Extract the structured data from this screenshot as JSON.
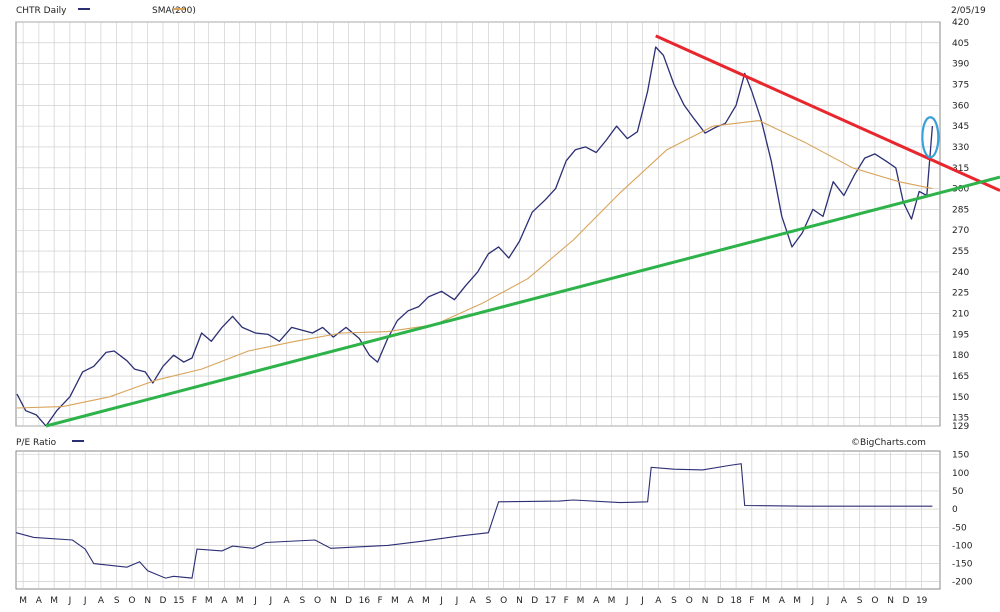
{
  "header": {
    "price_legend_label": "CHTR Daily",
    "sma_legend_label": "SMA(200)",
    "date_label": "2/05/19",
    "pe_legend_label": "P/E Ratio",
    "credit": "©BigCharts.com"
  },
  "colors": {
    "price": "#2b2f74",
    "sma": "#d9a35a",
    "resistance": "#e8262d",
    "support": "#2db34a",
    "highlight": "#3aa0d8",
    "grid": "#c8c8c8",
    "pe": "#2b2f74"
  },
  "chart_data": [
    {
      "type": "line",
      "name": "price-panel",
      "x_range": [
        "2014-03-01",
        "2019-02-20"
      ],
      "ylim": [
        129,
        420
      ],
      "y_ticks": [
        129,
        135,
        150,
        165,
        180,
        195,
        210,
        225,
        240,
        255,
        270,
        285,
        300,
        315,
        330,
        345,
        360,
        375,
        390,
        405,
        420
      ],
      "grid": true,
      "series": [
        {
          "name": "CHTR Daily",
          "points": [
            [
              "2014-03-03",
              152
            ],
            [
              "2014-03-20",
              140
            ],
            [
              "2014-04-10",
              137
            ],
            [
              "2014-04-29",
              129
            ],
            [
              "2014-05-20",
              140
            ],
            [
              "2014-06-15",
              150
            ],
            [
              "2014-07-10",
              168
            ],
            [
              "2014-08-01",
              172
            ],
            [
              "2014-08-25",
              182
            ],
            [
              "2014-09-10",
              183
            ],
            [
              "2014-10-05",
              176
            ],
            [
              "2014-10-20",
              170
            ],
            [
              "2014-11-10",
              168
            ],
            [
              "2014-11-25",
              160
            ],
            [
              "2014-12-15",
              172
            ],
            [
              "2015-01-05",
              180
            ],
            [
              "2015-01-25",
              175
            ],
            [
              "2015-02-10",
              178
            ],
            [
              "2015-03-01",
              196
            ],
            [
              "2015-03-20",
              190
            ],
            [
              "2015-04-10",
              200
            ],
            [
              "2015-05-01",
              208
            ],
            [
              "2015-05-20",
              200
            ],
            [
              "2015-06-15",
              196
            ],
            [
              "2015-07-10",
              195
            ],
            [
              "2015-08-01",
              190
            ],
            [
              "2015-08-25",
              200
            ],
            [
              "2015-09-15",
              198
            ],
            [
              "2015-10-05",
              196
            ],
            [
              "2015-10-25",
              200
            ],
            [
              "2015-11-15",
              193
            ],
            [
              "2015-12-10",
              200
            ],
            [
              "2016-01-05",
              192
            ],
            [
              "2016-01-25",
              180
            ],
            [
              "2016-02-10",
              175
            ],
            [
              "2016-03-01",
              192
            ],
            [
              "2016-03-20",
              205
            ],
            [
              "2016-04-10",
              212
            ],
            [
              "2016-05-01",
              215
            ],
            [
              "2016-05-20",
              222
            ],
            [
              "2016-06-15",
              226
            ],
            [
              "2016-07-10",
              220
            ],
            [
              "2016-08-01",
              230
            ],
            [
              "2016-08-25",
              240
            ],
            [
              "2016-09-15",
              253
            ],
            [
              "2016-10-05",
              258
            ],
            [
              "2016-10-25",
              250
            ],
            [
              "2016-11-15",
              262
            ],
            [
              "2016-12-10",
              283
            ],
            [
              "2017-01-05",
              292
            ],
            [
              "2017-01-25",
              300
            ],
            [
              "2017-02-15",
              320
            ],
            [
              "2017-03-05",
              328
            ],
            [
              "2017-03-25",
              330
            ],
            [
              "2017-04-15",
              326
            ],
            [
              "2017-05-05",
              335
            ],
            [
              "2017-05-25",
              345
            ],
            [
              "2017-06-15",
              336
            ],
            [
              "2017-07-05",
              341
            ],
            [
              "2017-07-25",
              370
            ],
            [
              "2017-08-10",
              402
            ],
            [
              "2017-08-25",
              396
            ],
            [
              "2017-09-15",
              375
            ],
            [
              "2017-10-05",
              360
            ],
            [
              "2017-10-25",
              350
            ],
            [
              "2017-11-15",
              340
            ],
            [
              "2017-12-05",
              344
            ],
            [
              "2017-12-25",
              347
            ],
            [
              "2018-01-15",
              360
            ],
            [
              "2018-02-01",
              383
            ],
            [
              "2018-02-15",
              370
            ],
            [
              "2018-03-05",
              350
            ],
            [
              "2018-03-25",
              320
            ],
            [
              "2018-04-15",
              280
            ],
            [
              "2018-05-05",
              258
            ],
            [
              "2018-05-25",
              268
            ],
            [
              "2018-06-15",
              285
            ],
            [
              "2018-07-05",
              280
            ],
            [
              "2018-07-25",
              305
            ],
            [
              "2018-08-15",
              295
            ],
            [
              "2018-09-05",
              310
            ],
            [
              "2018-09-25",
              322
            ],
            [
              "2018-10-15",
              325
            ],
            [
              "2018-11-05",
              320
            ],
            [
              "2018-11-25",
              315
            ],
            [
              "2018-12-10",
              290
            ],
            [
              "2018-12-26",
              278
            ],
            [
              "2019-01-10",
              298
            ],
            [
              "2019-01-25",
              295
            ],
            [
              "2019-02-05",
              345
            ]
          ]
        },
        {
          "name": "SMA(200)",
          "points": [
            [
              "2014-03-03",
              142
            ],
            [
              "2014-06-01",
              143
            ],
            [
              "2014-09-01",
              150
            ],
            [
              "2014-12-01",
              162
            ],
            [
              "2015-03-01",
              170
            ],
            [
              "2015-06-01",
              183
            ],
            [
              "2015-09-01",
              190
            ],
            [
              "2015-12-01",
              196
            ],
            [
              "2016-03-01",
              197
            ],
            [
              "2016-06-01",
              202
            ],
            [
              "2016-09-01",
              217
            ],
            [
              "2016-12-01",
              235
            ],
            [
              "2017-03-01",
              263
            ],
            [
              "2017-06-01",
              297
            ],
            [
              "2017-09-01",
              328
            ],
            [
              "2017-12-01",
              345
            ],
            [
              "2018-03-01",
              349
            ],
            [
              "2018-06-01",
              333
            ],
            [
              "2018-09-01",
              315
            ],
            [
              "2018-12-01",
              305
            ],
            [
              "2019-02-05",
              300
            ]
          ]
        }
      ],
      "trendlines": [
        {
          "name": "resistance",
          "from": [
            "2017-08-10",
            410
          ],
          "to": [
            "2019-02-20",
            318
          ]
        },
        {
          "name": "support",
          "from": [
            "2014-04-29",
            129
          ],
          "to": [
            "2019-02-20",
            297
          ]
        }
      ],
      "annotation": {
        "type": "ellipse",
        "at": [
          "2019-02-01",
          337
        ]
      }
    },
    {
      "type": "line",
      "name": "pe-panel",
      "x_range": [
        "2014-03-01",
        "2019-02-20"
      ],
      "ylim": [
        -220,
        160
      ],
      "y_ticks": [
        -200,
        -150,
        -100,
        -50,
        0,
        50,
        100,
        150
      ],
      "grid": true,
      "series": [
        {
          "name": "P/E Ratio",
          "points": [
            [
              "2014-03-01",
              -65
            ],
            [
              "2014-04-05",
              -78
            ],
            [
              "2014-06-20",
              -85
            ],
            [
              "2014-07-15",
              -110
            ],
            [
              "2014-08-01",
              -150
            ],
            [
              "2014-10-05",
              -160
            ],
            [
              "2014-10-30",
              -145
            ],
            [
              "2014-11-15",
              -170
            ],
            [
              "2014-12-20",
              -190
            ],
            [
              "2015-01-05",
              -185
            ],
            [
              "2015-02-10",
              -190
            ],
            [
              "2015-02-20",
              -110
            ],
            [
              "2015-04-10",
              -115
            ],
            [
              "2015-05-01",
              -102
            ],
            [
              "2015-06-10",
              -108
            ],
            [
              "2015-07-05",
              -92
            ],
            [
              "2015-10-10",
              -85
            ],
            [
              "2015-11-10",
              -108
            ],
            [
              "2016-03-01",
              -100
            ],
            [
              "2016-05-10",
              -88
            ],
            [
              "2016-07-15",
              -75
            ],
            [
              "2016-09-15",
              -65
            ],
            [
              "2016-10-05",
              20
            ],
            [
              "2017-02-01",
              22
            ],
            [
              "2017-03-01",
              25
            ],
            [
              "2017-06-01",
              18
            ],
            [
              "2017-07-25",
              20
            ],
            [
              "2017-08-01",
              115
            ],
            [
              "2017-09-15",
              110
            ],
            [
              "2017-11-10",
              108
            ],
            [
              "2018-01-01",
              120
            ],
            [
              "2018-01-25",
              125
            ],
            [
              "2018-02-01",
              10
            ],
            [
              "2018-06-01",
              8
            ],
            [
              "2019-02-05",
              8
            ]
          ]
        }
      ]
    }
  ],
  "x_axis": {
    "ticks": [
      {
        "date": "2014-03-15",
        "label": "M"
      },
      {
        "date": "2014-04-15",
        "label": "A"
      },
      {
        "date": "2014-05-15",
        "label": "M"
      },
      {
        "date": "2014-06-15",
        "label": "J"
      },
      {
        "date": "2014-07-15",
        "label": "J"
      },
      {
        "date": "2014-08-15",
        "label": "A"
      },
      {
        "date": "2014-09-15",
        "label": "S"
      },
      {
        "date": "2014-10-15",
        "label": "O"
      },
      {
        "date": "2014-11-15",
        "label": "N"
      },
      {
        "date": "2014-12-15",
        "label": "D"
      },
      {
        "date": "2015-01-15",
        "label": "15"
      },
      {
        "date": "2015-02-15",
        "label": "F"
      },
      {
        "date": "2015-03-15",
        "label": "M"
      },
      {
        "date": "2015-04-15",
        "label": "A"
      },
      {
        "date": "2015-05-15",
        "label": "M"
      },
      {
        "date": "2015-06-15",
        "label": "J"
      },
      {
        "date": "2015-07-15",
        "label": "J"
      },
      {
        "date": "2015-08-15",
        "label": "A"
      },
      {
        "date": "2015-09-15",
        "label": "S"
      },
      {
        "date": "2015-10-15",
        "label": "O"
      },
      {
        "date": "2015-11-15",
        "label": "N"
      },
      {
        "date": "2015-12-15",
        "label": "D"
      },
      {
        "date": "2016-01-15",
        "label": "16"
      },
      {
        "date": "2016-02-15",
        "label": "F"
      },
      {
        "date": "2016-03-15",
        "label": "M"
      },
      {
        "date": "2016-04-15",
        "label": "A"
      },
      {
        "date": "2016-05-15",
        "label": "M"
      },
      {
        "date": "2016-06-15",
        "label": "J"
      },
      {
        "date": "2016-07-15",
        "label": "J"
      },
      {
        "date": "2016-08-15",
        "label": "A"
      },
      {
        "date": "2016-09-15",
        "label": "S"
      },
      {
        "date": "2016-10-15",
        "label": "O"
      },
      {
        "date": "2016-11-15",
        "label": "N"
      },
      {
        "date": "2016-12-15",
        "label": "D"
      },
      {
        "date": "2017-01-15",
        "label": "17"
      },
      {
        "date": "2017-02-15",
        "label": "F"
      },
      {
        "date": "2017-03-15",
        "label": "M"
      },
      {
        "date": "2017-04-15",
        "label": "A"
      },
      {
        "date": "2017-05-15",
        "label": "M"
      },
      {
        "date": "2017-06-15",
        "label": "J"
      },
      {
        "date": "2017-07-15",
        "label": "J"
      },
      {
        "date": "2017-08-15",
        "label": "A"
      },
      {
        "date": "2017-09-15",
        "label": "S"
      },
      {
        "date": "2017-10-15",
        "label": "O"
      },
      {
        "date": "2017-11-15",
        "label": "N"
      },
      {
        "date": "2017-12-15",
        "label": "D"
      },
      {
        "date": "2018-01-15",
        "label": "18"
      },
      {
        "date": "2018-02-15",
        "label": "F"
      },
      {
        "date": "2018-03-15",
        "label": "M"
      },
      {
        "date": "2018-04-15",
        "label": "A"
      },
      {
        "date": "2018-05-15",
        "label": "M"
      },
      {
        "date": "2018-06-15",
        "label": "J"
      },
      {
        "date": "2018-07-15",
        "label": "J"
      },
      {
        "date": "2018-08-15",
        "label": "A"
      },
      {
        "date": "2018-09-15",
        "label": "S"
      },
      {
        "date": "2018-10-15",
        "label": "O"
      },
      {
        "date": "2018-11-15",
        "label": "N"
      },
      {
        "date": "2018-12-15",
        "label": "D"
      },
      {
        "date": "2019-01-15",
        "label": "19"
      }
    ]
  }
}
